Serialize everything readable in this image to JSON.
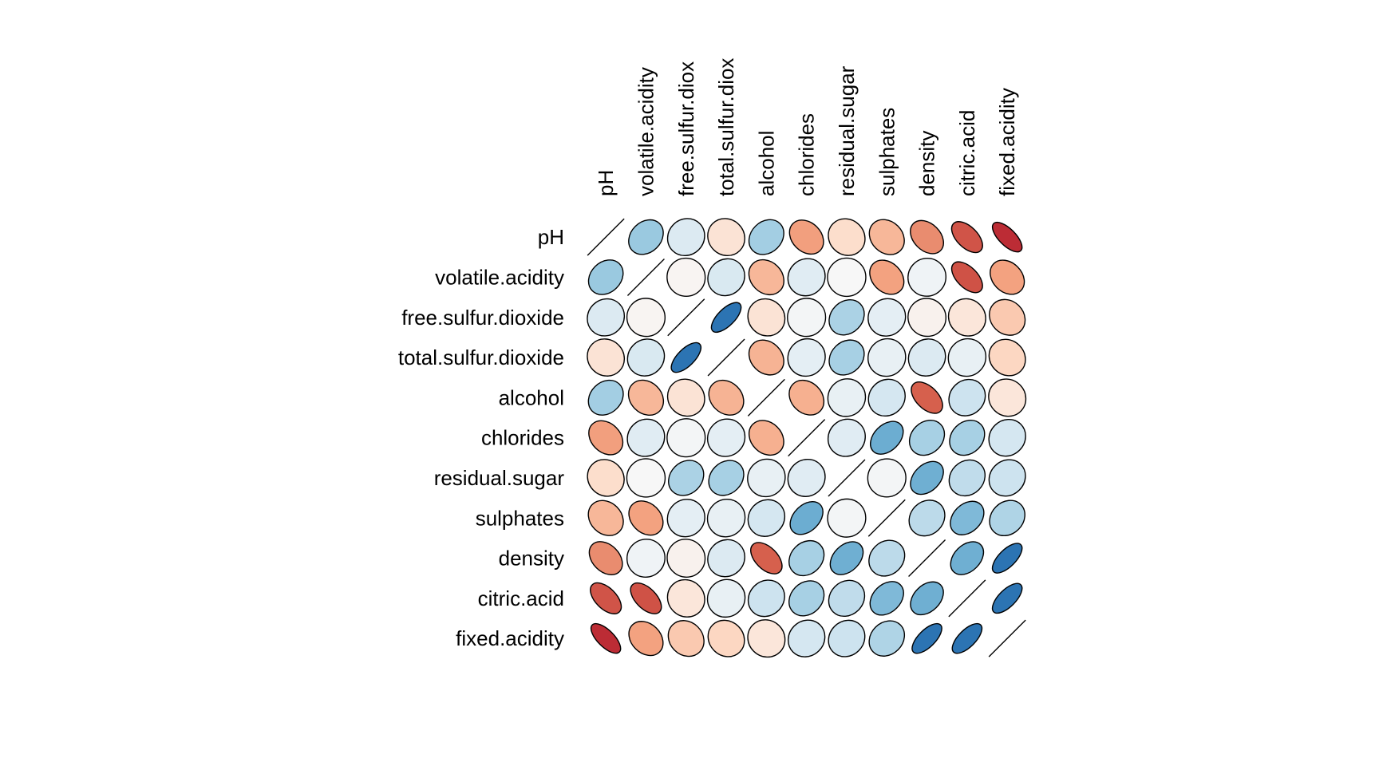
{
  "chart_data": {
    "type": "heatmap",
    "title": "",
    "variables": [
      "pH",
      "volatile.acidity",
      "free.sulfur.dioxide",
      "total.sulfur.dioxide",
      "alcohol",
      "chlorides",
      "residual.sugar",
      "sulphates",
      "density",
      "citric.acid",
      "fixed.acidity"
    ],
    "column_labels": [
      "pH",
      "volatile.acidity",
      "free.sulfur.diox",
      "total.sulfur.diox",
      "alcohol",
      "chlorides",
      "residual.sugar",
      "sulphates",
      "density",
      "citric.acid",
      "fixed.acidity"
    ],
    "matrix": [
      [
        1.0,
        0.23,
        0.07,
        -0.07,
        0.21,
        -0.27,
        -0.09,
        -0.2,
        -0.34,
        -0.54,
        -0.68
      ],
      [
        0.23,
        1.0,
        -0.01,
        0.08,
        -0.2,
        0.06,
        0.0,
        -0.26,
        0.02,
        -0.55,
        -0.26
      ],
      [
        0.07,
        -0.01,
        1.0,
        0.67,
        -0.07,
        0.01,
        0.19,
        0.05,
        -0.02,
        -0.06,
        -0.15
      ],
      [
        -0.07,
        0.08,
        0.67,
        1.0,
        -0.21,
        0.05,
        0.2,
        0.04,
        0.07,
        0.04,
        -0.11
      ],
      [
        0.21,
        -0.2,
        -0.07,
        -0.21,
        1.0,
        -0.22,
        0.04,
        0.09,
        -0.5,
        0.11,
        -0.06
      ],
      [
        -0.27,
        0.06,
        0.01,
        0.05,
        -0.22,
        1.0,
        0.06,
        0.37,
        0.2,
        0.2,
        0.09
      ],
      [
        -0.09,
        0.0,
        0.19,
        0.2,
        0.04,
        0.06,
        1.0,
        0.01,
        0.36,
        0.14,
        0.11
      ],
      [
        -0.2,
        -0.26,
        0.05,
        0.04,
        0.09,
        0.37,
        0.01,
        1.0,
        0.15,
        0.31,
        0.18
      ],
      [
        -0.34,
        0.02,
        -0.02,
        0.07,
        -0.5,
        0.2,
        0.36,
        0.15,
        1.0,
        0.36,
        0.67
      ],
      [
        -0.54,
        -0.55,
        -0.06,
        0.04,
        0.11,
        0.2,
        0.14,
        0.31,
        0.36,
        1.0,
        0.67
      ],
      [
        -0.68,
        -0.26,
        -0.15,
        -0.11,
        -0.06,
        0.09,
        0.11,
        0.18,
        0.67,
        0.67,
        1.0
      ]
    ],
    "value_range": [
      -1,
      1
    ],
    "colors": {
      "negative_strong": "#67001F",
      "negative": "#D6604D",
      "negative_light": "#F4A582",
      "negative_pale": "#FDDBC7",
      "neutral": "#F7F7F7",
      "positive_pale": "#D1E5F0",
      "positive_light": "#92C5DE",
      "positive": "#4393C3",
      "positive_strong": "#053061",
      "outline": "#000000"
    },
    "grid": false,
    "legend": "none"
  }
}
